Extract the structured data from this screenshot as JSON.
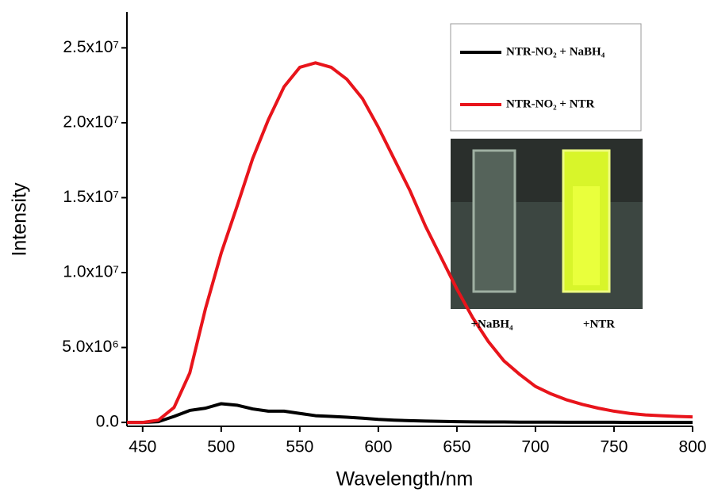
{
  "chart_data": {
    "type": "line",
    "xlabel": "Wavelength/nm",
    "ylabel": "Intensity",
    "x": [
      440,
      450,
      460,
      470,
      480,
      490,
      500,
      510,
      520,
      530,
      540,
      550,
      560,
      570,
      580,
      590,
      600,
      610,
      620,
      630,
      640,
      650,
      660,
      670,
      680,
      690,
      700,
      710,
      720,
      730,
      740,
      750,
      760,
      770,
      780,
      790,
      800
    ],
    "series": [
      {
        "name": "NTR-NO₂ + NaBH₄",
        "color": "#000000",
        "values": [
          0,
          0,
          50000,
          400000,
          800000,
          950000,
          1250000,
          1150000,
          900000,
          750000,
          750000,
          600000,
          450000,
          400000,
          350000,
          280000,
          200000,
          150000,
          120000,
          90000,
          70000,
          50000,
          40000,
          30000,
          30000,
          20000,
          20000,
          20000,
          10000,
          10000,
          10000,
          10000,
          0,
          0,
          0,
          0,
          0
        ]
      },
      {
        "name": "NTR-NO₂ + NTR",
        "color": "#e8141b",
        "values": [
          0,
          0,
          150000,
          1000000,
          3300000,
          7600000,
          11300000,
          14400000,
          17600000,
          20200000,
          22400000,
          23700000,
          24000000,
          23700000,
          22900000,
          21600000,
          19700000,
          17600000,
          15500000,
          13100000,
          11000000,
          8900000,
          7000000,
          5400000,
          4100000,
          3200000,
          2400000,
          1900000,
          1500000,
          1200000,
          950000,
          750000,
          600000,
          500000,
          450000,
          400000,
          370000
        ]
      }
    ],
    "xlim": [
      440,
      800
    ],
    "xticks": [
      450,
      500,
      550,
      600,
      650,
      700,
      750,
      800
    ],
    "ylim": [
      -260000,
      27400000
    ],
    "yticks": [
      {
        "value": 0,
        "label": "0.0"
      },
      {
        "value": 5000000,
        "label": "5.0x10⁶"
      },
      {
        "value": 10000000,
        "label": "1.0x10⁷"
      },
      {
        "value": 15000000,
        "label": "1.5x10⁷"
      },
      {
        "value": 20000000,
        "label": "2.0x10⁷"
      },
      {
        "value": 25000000,
        "label": "2.5x10⁷"
      }
    ],
    "grid": false,
    "legend": "upper right",
    "annotations": [
      "+NaBH₄",
      "+NTR"
    ]
  }
}
